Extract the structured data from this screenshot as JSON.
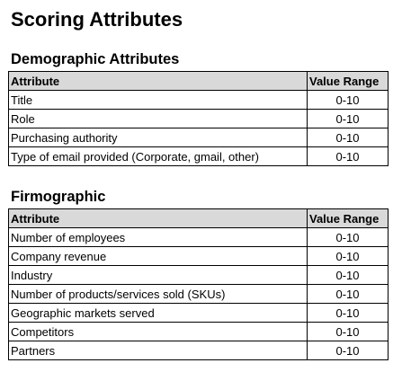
{
  "title": "Scoring Attributes",
  "sections": [
    {
      "title": "Demographic Attributes",
      "headers": {
        "attribute": "Attribute",
        "range": "Value Range"
      },
      "rows": [
        {
          "attribute": "Title",
          "range": "0-10"
        },
        {
          "attribute": "Role",
          "range": "0-10"
        },
        {
          "attribute": "Purchasing authority",
          "range": "0-10"
        },
        {
          "attribute": "Type of email provided (Corporate, gmail, other)",
          "range": "0-10"
        }
      ]
    },
    {
      "title": "Firmographic",
      "headers": {
        "attribute": "Attribute",
        "range": "Value Range"
      },
      "rows": [
        {
          "attribute": "Number of employees",
          "range": "0-10"
        },
        {
          "attribute": "Company revenue",
          "range": "0-10"
        },
        {
          "attribute": "Industry",
          "range": "0-10"
        },
        {
          "attribute": "Number of products/services sold (SKUs)",
          "range": "0-10"
        },
        {
          "attribute": "Geographic markets served",
          "range": "0-10"
        },
        {
          "attribute": "Competitors",
          "range": "0-10"
        },
        {
          "attribute": "Partners",
          "range": "0-10"
        }
      ]
    }
  ]
}
